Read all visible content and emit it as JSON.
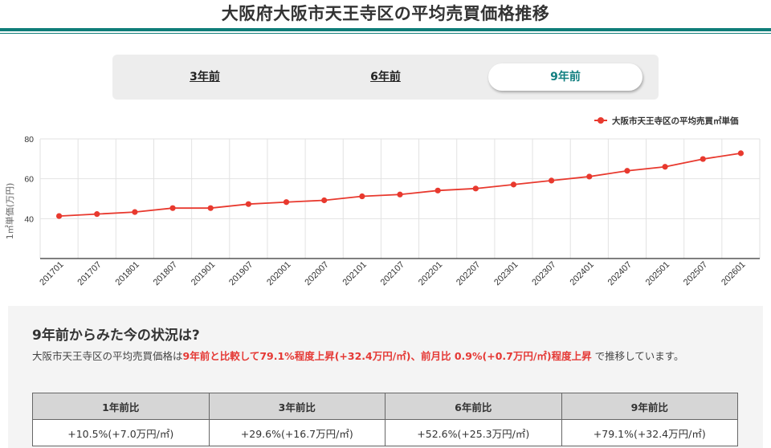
{
  "header": {
    "title": "大阪府大阪市天王寺区の平均売買価格推移"
  },
  "tabs": [
    {
      "label": "3年前",
      "active": false
    },
    {
      "label": "6年前",
      "active": false
    },
    {
      "label": "9年前",
      "active": true
    }
  ],
  "colors": {
    "accent": "#0f7d79",
    "series": "#e8392e",
    "highlight": "#e53935",
    "active_tab_text": "#117f80"
  },
  "chart_data": {
    "type": "line",
    "title": "",
    "xlabel": "",
    "ylabel": "1㎡単価(万円)",
    "ylim": [
      20,
      80
    ],
    "yticks": [
      40,
      60,
      80
    ],
    "grid": true,
    "legend_position": "top-right",
    "categories": [
      "201701",
      "201707",
      "201801",
      "201807",
      "201901",
      "201907",
      "202001",
      "202007",
      "202101",
      "202107",
      "202201",
      "202207",
      "202301",
      "202307",
      "202401",
      "202407",
      "202501",
      "202507",
      "202601"
    ],
    "series": [
      {
        "name": "大阪市天王寺区の平均売買㎡単価",
        "values": [
          41.3,
          42.3,
          43.3,
          45.3,
          45.3,
          47.3,
          48.3,
          49.2,
          51.2,
          52.1,
          54.1,
          55.1,
          57.1,
          59.1,
          61.1,
          64.0,
          66.0,
          69.9,
          72.8
        ]
      }
    ]
  },
  "summary": {
    "title": "9年前からみた今の状況は?",
    "text_prefix": "大阪市天王寺区の平均売買価格は",
    "text_highlight": "9年前と比較して79.1%程度上昇(+32.4万円/㎡)、前月比 0.9%(+0.7万円/㎡)程度上昇",
    "text_suffix": " で推移しています。"
  },
  "comparison_table": {
    "headers": [
      "1年前比",
      "3年前比",
      "6年前比",
      "9年前比"
    ],
    "values": [
      "+10.5%(+7.0万円/㎡)",
      "+29.6%(+16.7万円/㎡)",
      "+52.6%(+25.3万円/㎡)",
      "+79.1%(+32.4万円/㎡)"
    ]
  }
}
